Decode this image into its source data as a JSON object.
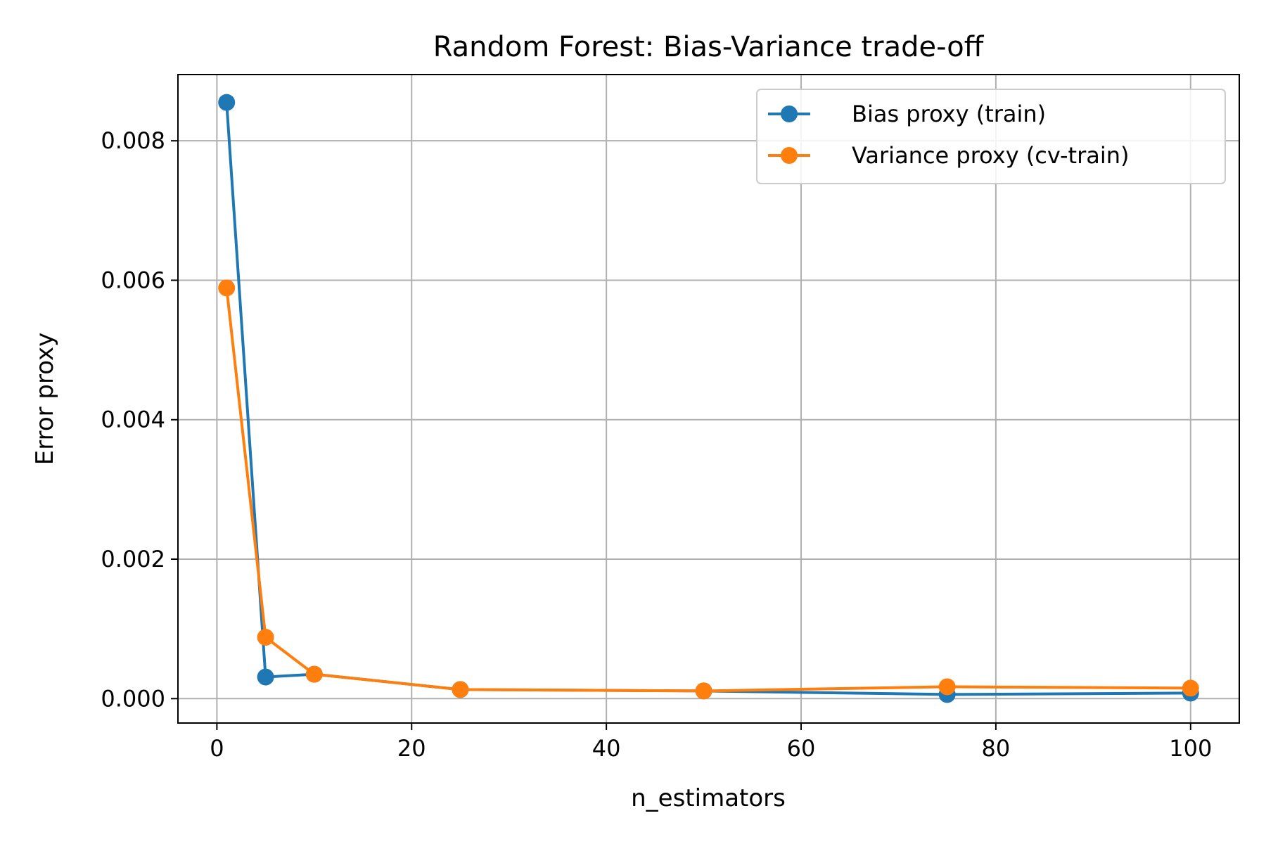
{
  "chart_data": {
    "type": "line",
    "title": "Random Forest: Bias-Variance trade-off",
    "xlabel": "n_estimators",
    "ylabel": "Error proxy",
    "x": [
      1,
      5,
      10,
      25,
      50,
      75,
      100
    ],
    "series": [
      {
        "name": "Bias proxy (train)",
        "color": "#1f77b4",
        "marker": "circle",
        "values": [
          0.00855,
          0.00031,
          0.00035,
          0.00013,
          0.00011,
          6e-05,
          8e-05
        ]
      },
      {
        "name": "Variance proxy (cv-train)",
        "color": "#ff7f0e",
        "marker": "circle",
        "values": [
          0.00589,
          0.00088,
          0.00035,
          0.00013,
          0.00011,
          0.00017,
          0.00015
        ]
      }
    ],
    "xlim": [
      -4,
      105
    ],
    "ylim": [
      -0.00035,
      0.00895
    ],
    "xticks": [
      0,
      20,
      40,
      60,
      80,
      100
    ],
    "xtick_labels": [
      "0",
      "20",
      "40",
      "60",
      "80",
      "100"
    ],
    "yticks": [
      0,
      0.002,
      0.004,
      0.006,
      0.008
    ],
    "ytick_labels": [
      "0.000",
      "0.002",
      "0.004",
      "0.006",
      "0.008"
    ],
    "grid": true,
    "legend_position": "upper right"
  }
}
